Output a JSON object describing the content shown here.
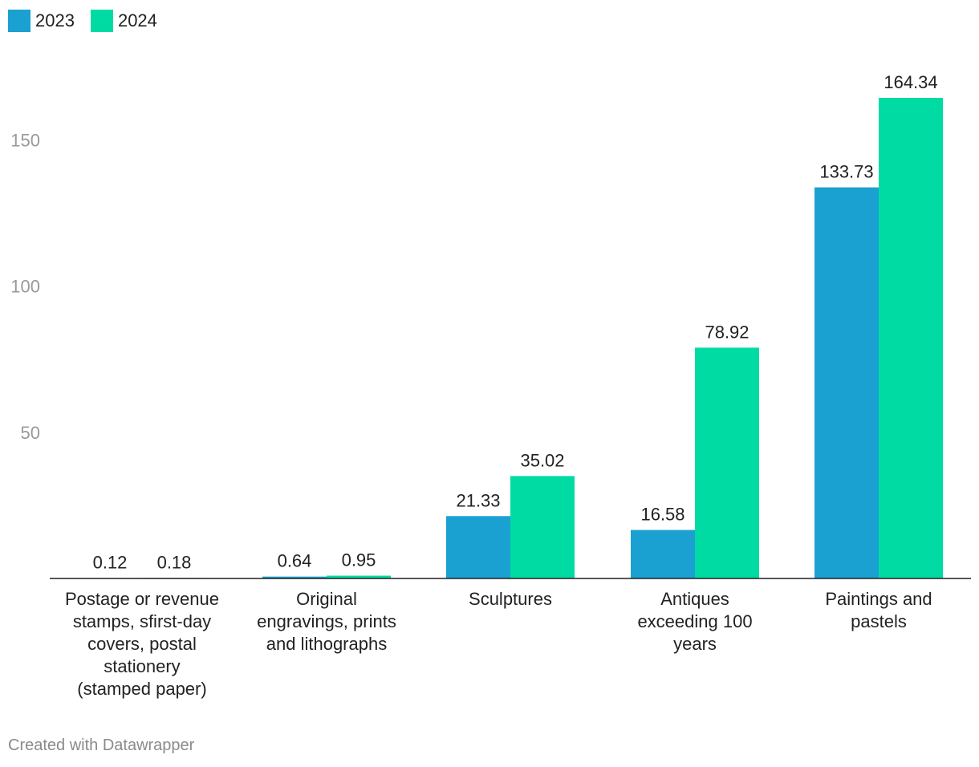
{
  "chart_data": {
    "type": "bar",
    "categories": [
      "Postage or revenue stamps, sfirst-day covers, postal stationery (stamped paper)",
      "Original engravings, prints and lithographs",
      "Sculptures",
      "Antiques exceeding 100 years",
      "Paintings and pastels"
    ],
    "category_lines": [
      [
        "Postage or revenue",
        "stamps, sfirst-day",
        "covers, postal",
        "stationery",
        "(stamped paper)"
      ],
      [
        "Original",
        "engravings, prints",
        "and lithographs"
      ],
      [
        "Sculptures"
      ],
      [
        "Antiques",
        "exceeding 100",
        "years"
      ],
      [
        "Paintings and",
        "pastels"
      ]
    ],
    "series": [
      {
        "name": "2023",
        "color": "#1ba1d1",
        "values": [
          0.12,
          0.64,
          21.33,
          16.58,
          133.73
        ],
        "labels": [
          "0.12",
          "0.64",
          "21.33",
          "16.58",
          "133.73"
        ]
      },
      {
        "name": "2024",
        "color": "#00dba4",
        "values": [
          0.18,
          0.95,
          35.02,
          78.92,
          164.34
        ],
        "labels": [
          "0.18",
          "0.95",
          "35.02",
          "78.92",
          "164.34"
        ]
      }
    ],
    "yticks": [
      50,
      100,
      150
    ],
    "ytick_labels": [
      "50",
      "100",
      "150"
    ],
    "ylim": [
      0,
      175
    ],
    "grid": false,
    "legend": "top-left",
    "title": "",
    "xlabel": "",
    "ylabel": ""
  },
  "legend": {
    "items": [
      {
        "label": "2023",
        "color": "#1ba1d1"
      },
      {
        "label": "2024",
        "color": "#00dba4"
      }
    ]
  },
  "footer": {
    "credit": "Created with Datawrapper"
  }
}
